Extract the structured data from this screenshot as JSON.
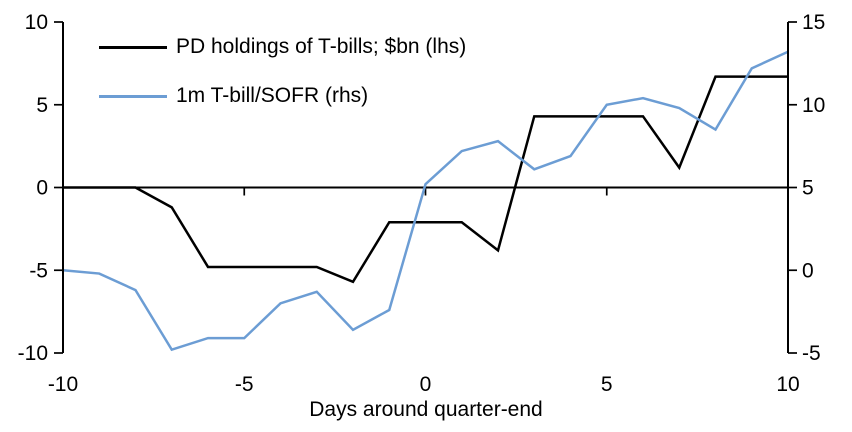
{
  "chart_data": {
    "type": "line",
    "title": "",
    "xlabel": "Days around quarter-end",
    "x": [
      -10,
      -9,
      -8,
      -7,
      -6,
      -5,
      -4,
      -3,
      -2,
      -1,
      0,
      1,
      2,
      3,
      4,
      5,
      6,
      7,
      8,
      9,
      10
    ],
    "series": [
      {
        "name": "PD holdings of T-bills; $bn (lhs)",
        "axis": "left",
        "color": "#000000",
        "values": [
          0,
          0,
          0,
          -1.2,
          -4.8,
          -4.8,
          -4.8,
          -4.8,
          -5.7,
          -2.1,
          -2.1,
          -2.1,
          -3.8,
          4.3,
          4.3,
          4.3,
          4.3,
          1.2,
          6.7,
          6.7,
          6.7
        ]
      },
      {
        "name": "1m T-bill/SOFR (rhs)",
        "axis": "right",
        "color": "#6C9DD4",
        "values": [
          0,
          -0.2,
          -1.2,
          -4.8,
          -4.1,
          -4.1,
          -2.0,
          -1.3,
          -3.6,
          -2.4,
          5.2,
          7.2,
          7.8,
          6.1,
          6.9,
          10.0,
          10.4,
          9.8,
          8.5,
          12.2,
          13.2
        ]
      }
    ],
    "x_range": [
      -10,
      10
    ],
    "x_ticks": [
      -10,
      -5,
      0,
      5,
      10
    ],
    "left_axis_range": [
      -10,
      10
    ],
    "left_axis_ticks": [
      -10,
      -5,
      0,
      5,
      10
    ],
    "right_axis_range": [
      -5,
      15
    ],
    "right_axis_ticks": [
      -5,
      0,
      5,
      10,
      15
    ],
    "legend_position": "top-left",
    "grid": false,
    "zero_line": true,
    "axis_color": "#000000"
  }
}
